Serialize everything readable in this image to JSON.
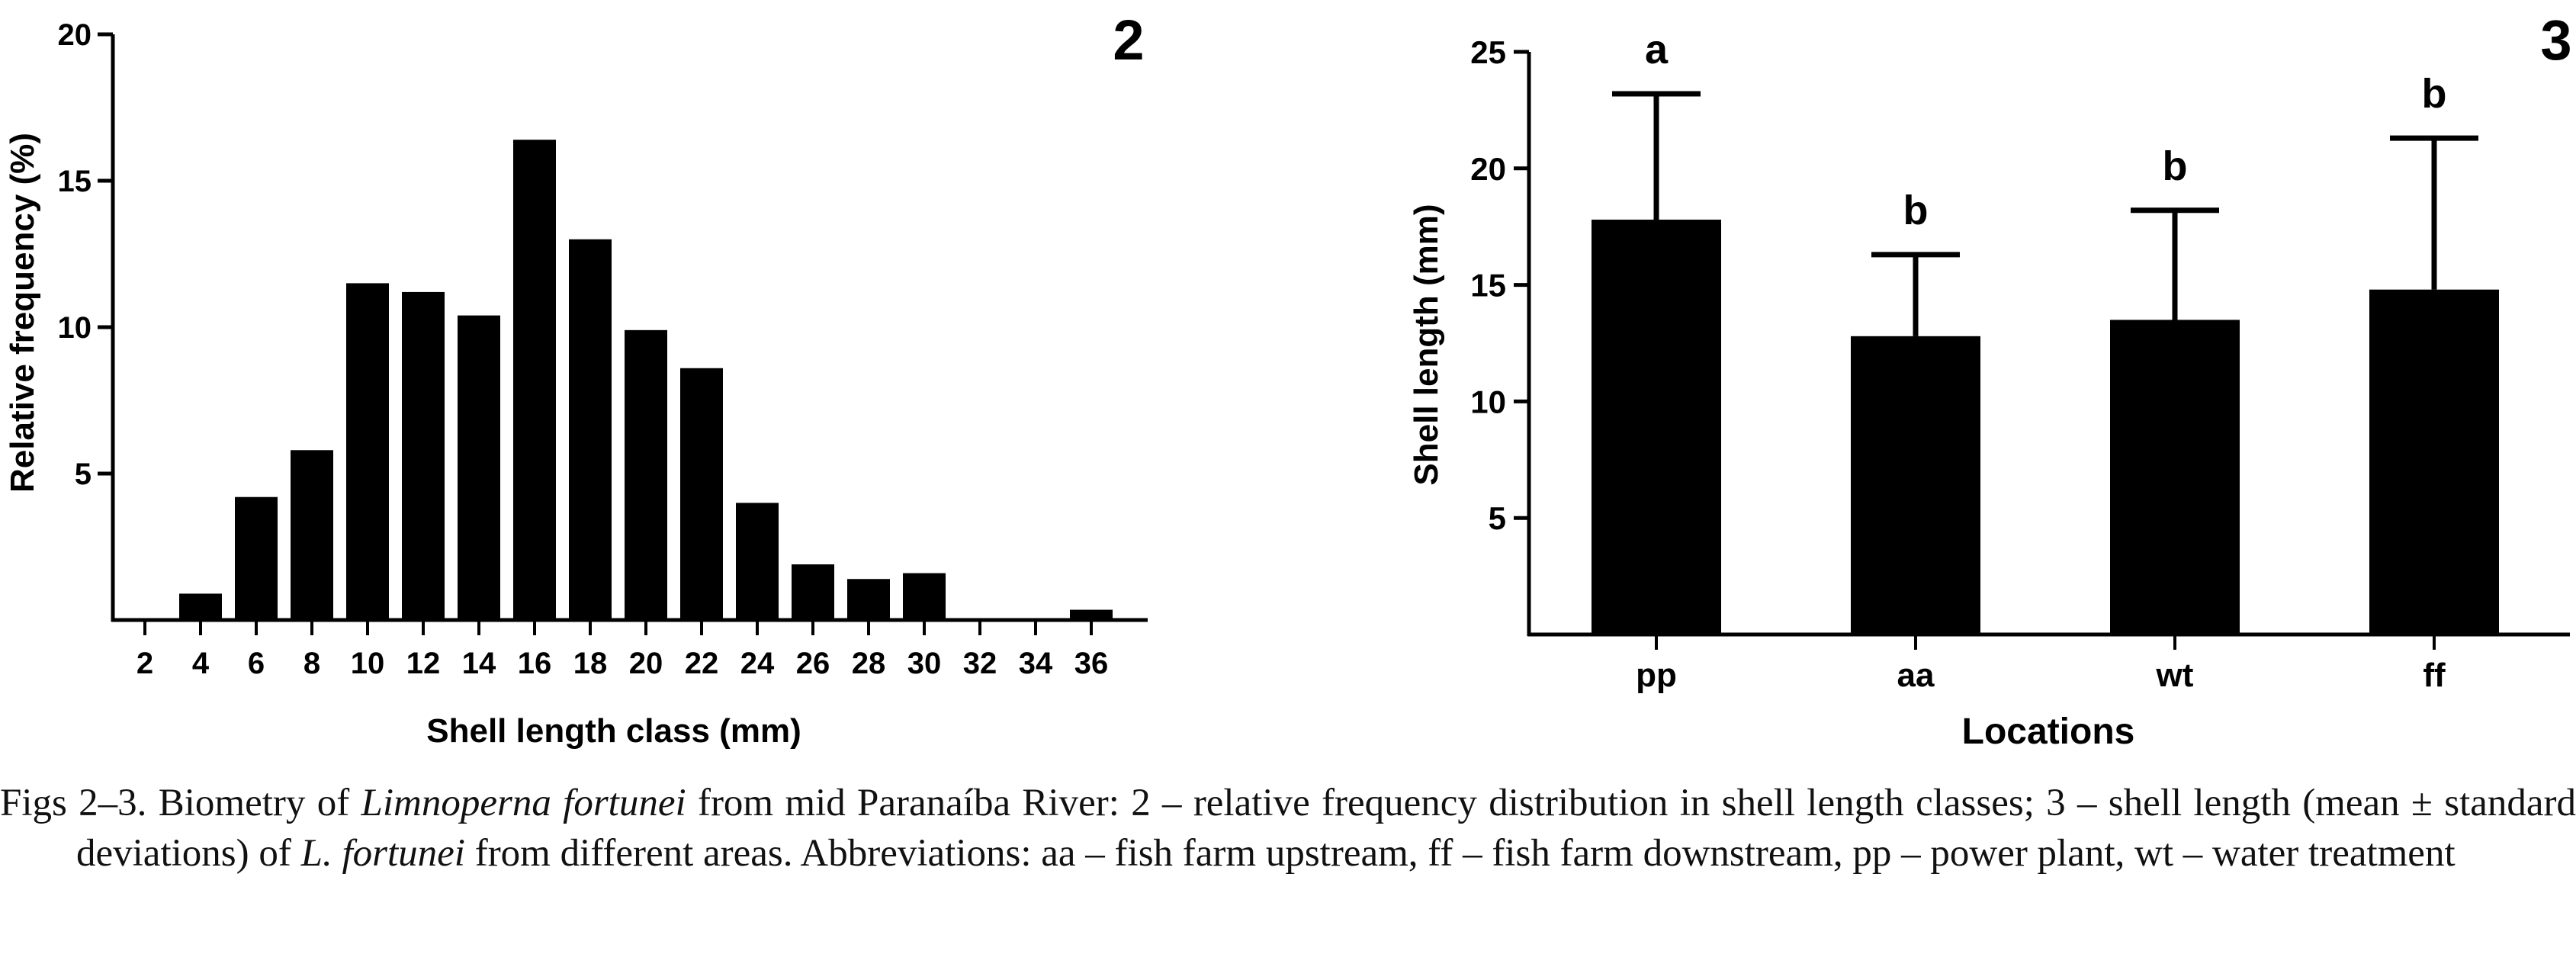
{
  "chart_data": [
    {
      "type": "bar",
      "panel_label": "2",
      "xlabel": "Shell length  class (mm)",
      "ylabel": "Relative frequency (%)",
      "ylim": [
        0,
        20
      ],
      "yticks": [
        5,
        10,
        15,
        20
      ],
      "grid": false,
      "categories": [
        "2",
        "4",
        "6",
        "8",
        "10",
        "12",
        "14",
        "16",
        "18",
        "20",
        "22",
        "24",
        "26",
        "28",
        "30",
        "32",
        "34",
        "36"
      ],
      "values": [
        0,
        0.9,
        4.2,
        5.8,
        11.5,
        11.2,
        10.4,
        16.4,
        13.0,
        9.9,
        8.6,
        4.0,
        1.9,
        1.4,
        1.6,
        0,
        0,
        0.35
      ]
    },
    {
      "type": "bar",
      "panel_label": "3",
      "xlabel": "Locations",
      "ylabel": "Shell length (mm)",
      "ylim": [
        0,
        25
      ],
      "yticks": [
        5,
        10,
        15,
        20,
        25
      ],
      "grid": false,
      "categories": [
        "pp",
        "aa",
        "wt",
        "ff"
      ],
      "values": [
        17.8,
        12.8,
        13.5,
        14.8
      ],
      "error_upper": [
        23.2,
        16.3,
        18.2,
        21.3
      ],
      "annotations": [
        "a",
        "b",
        "b",
        "b"
      ]
    }
  ],
  "caption": {
    "line1_a": "Figs 2–3. Biometry of ",
    "line1_b": "Limnoperna fortunei",
    "line1_c": " from mid Paranaíba River: 2 – relative frequency distribution in shell length classes; 3 – shell length (mean ± standard deviations) of ",
    "line1_d": "L. fortunei",
    "line1_e": " from different areas. Abbreviations: aa – fish farm upstream, ff – fish farm downstream, pp – power plant, wt – water treatment"
  }
}
